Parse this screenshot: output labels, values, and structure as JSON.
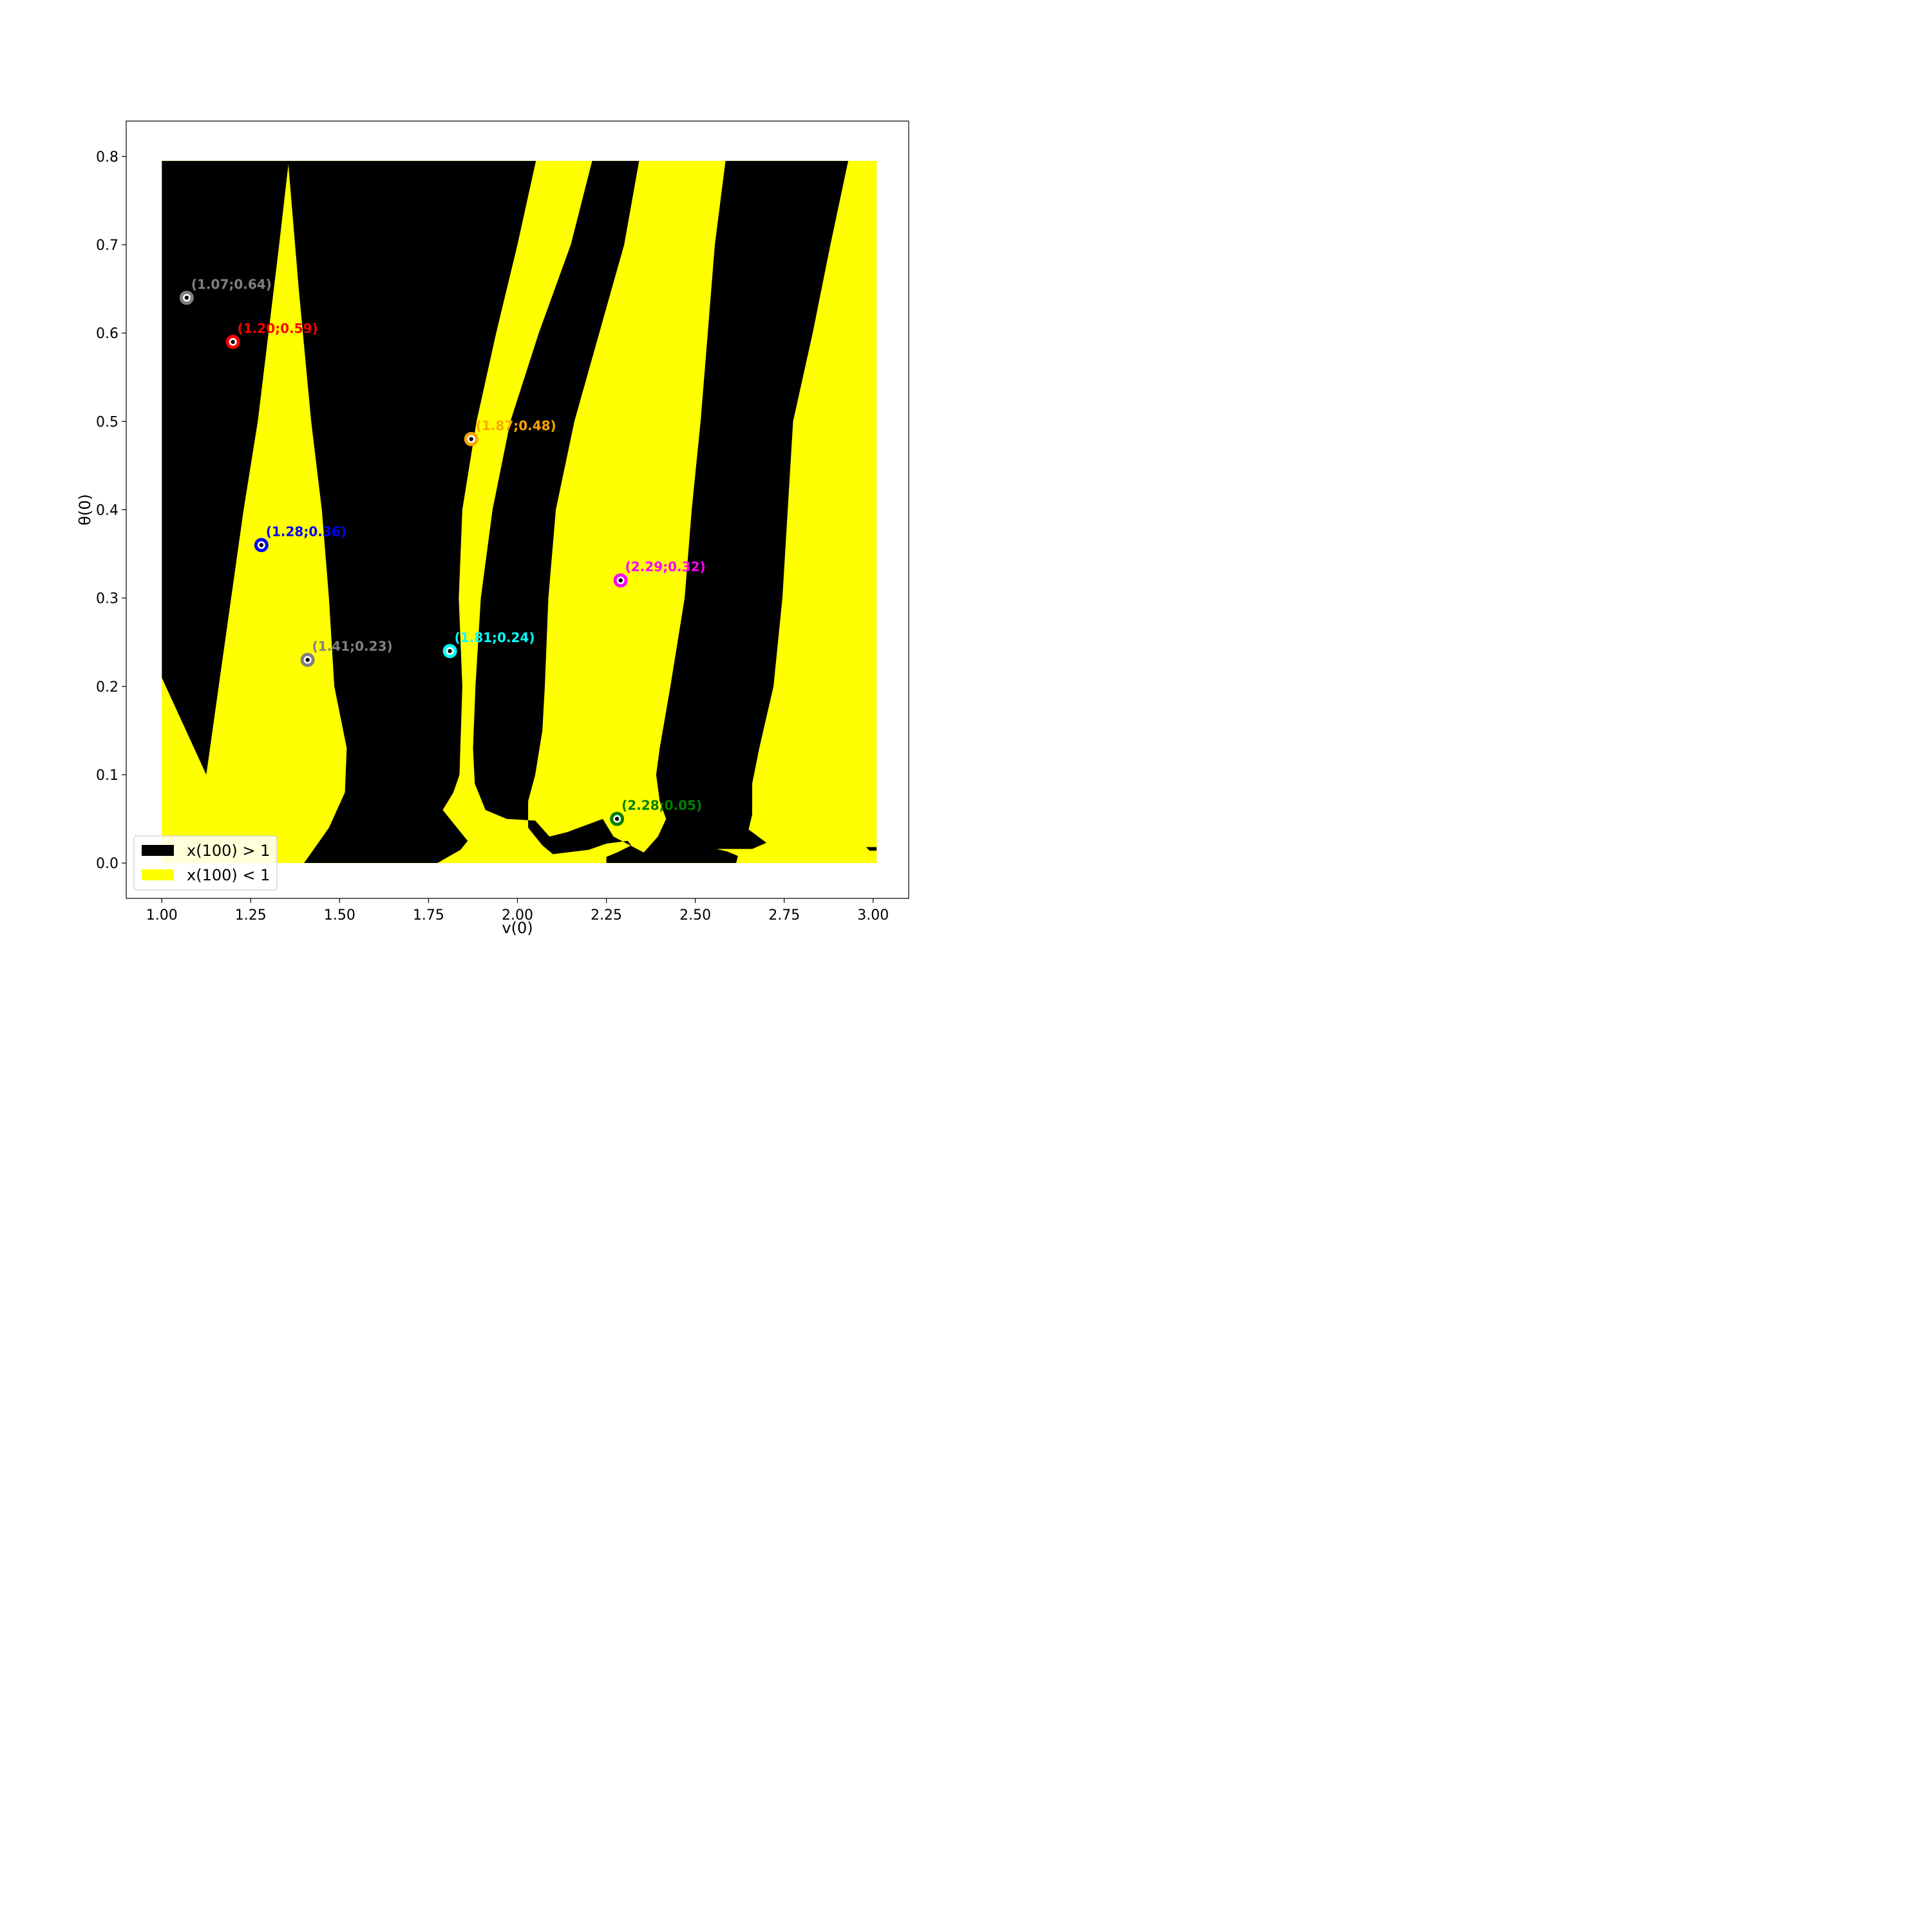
{
  "chart_data": {
    "type": "heatmap",
    "title": "",
    "xlabel": "v(0)",
    "ylabel": "θ(0)",
    "xlim": [
      0.9,
      3.1
    ],
    "ylim": [
      -0.04,
      0.84
    ],
    "xticks": [
      "1.00",
      "1.25",
      "1.50",
      "1.75",
      "2.00",
      "2.25",
      "2.50",
      "2.75",
      "3.00"
    ],
    "yticks": [
      "0.0",
      "0.1",
      "0.2",
      "0.3",
      "0.4",
      "0.5",
      "0.6",
      "0.7",
      "0.8"
    ],
    "grid": false,
    "legend": {
      "placement": "lower-left",
      "entries": [
        {
          "label_main": "x(100) > 1",
          "color": "#000000"
        },
        {
          "label_main": "x(100) < 1",
          "color": "#ffff00"
        }
      ]
    },
    "region_extent": {
      "x": [
        1.0,
        3.01
      ],
      "y": [
        0.0,
        0.795
      ]
    },
    "background_color": "#ffff00",
    "black_regions": [
      {
        "name": "band-1",
        "points": [
          [
            1.0,
            0.795
          ],
          [
            1.357,
            0.795
          ],
          [
            1.33,
            0.7
          ],
          [
            1.3,
            0.6
          ],
          [
            1.27,
            0.5
          ],
          [
            1.23,
            0.4
          ],
          [
            1.195,
            0.3
          ],
          [
            1.16,
            0.2
          ],
          [
            1.125,
            0.1
          ],
          [
            1.0,
            0.21
          ]
        ]
      },
      {
        "name": "band-2",
        "points": [
          [
            1.797,
            0.795
          ],
          [
            2.342,
            0.795
          ],
          [
            2.3,
            0.7
          ],
          [
            2.23,
            0.6
          ],
          [
            2.16,
            0.5
          ],
          [
            2.108,
            0.4
          ],
          [
            2.087,
            0.3
          ],
          [
            2.077,
            0.2
          ],
          [
            2.07,
            0.15
          ],
          [
            2.05,
            0.1
          ],
          [
            2.03,
            0.07
          ],
          [
            2.03,
            0.04
          ],
          [
            2.07,
            0.02
          ],
          [
            2.1,
            0.01
          ],
          [
            2.2,
            0.015
          ],
          [
            2.25,
            0.022
          ],
          [
            2.31,
            0.025
          ],
          [
            2.32,
            0.02
          ],
          [
            2.28,
            0.012
          ],
          [
            2.25,
            0.007
          ],
          [
            2.25,
            0.0
          ],
          [
            2.615,
            0.0
          ],
          [
            2.62,
            0.008
          ],
          [
            2.59,
            0.013
          ],
          [
            2.56,
            0.016
          ],
          [
            2.66,
            0.016
          ],
          [
            2.7,
            0.023
          ],
          [
            2.65,
            0.038
          ],
          [
            2.66,
            0.055
          ],
          [
            2.66,
            0.09
          ],
          [
            2.68,
            0.13
          ],
          [
            2.72,
            0.2
          ],
          [
            2.745,
            0.3
          ],
          [
            2.76,
            0.4
          ],
          [
            2.775,
            0.5
          ],
          [
            2.83,
            0.6
          ],
          [
            2.88,
            0.7
          ],
          [
            2.93,
            0.795
          ],
          [
            2.585,
            0.795
          ],
          [
            2.555,
            0.7
          ],
          [
            2.535,
            0.6
          ],
          [
            2.515,
            0.5
          ],
          [
            2.49,
            0.4
          ],
          [
            2.47,
            0.3
          ],
          [
            2.43,
            0.2
          ],
          [
            2.4,
            0.13
          ],
          [
            2.39,
            0.1
          ],
          [
            2.4,
            0.07
          ],
          [
            2.418,
            0.05
          ],
          [
            2.395,
            0.03
          ],
          [
            2.355,
            0.012
          ],
          [
            2.27,
            0.03
          ],
          [
            2.24,
            0.05
          ],
          [
            2.14,
            0.035
          ],
          [
            2.09,
            0.03
          ],
          [
            2.05,
            0.048
          ],
          [
            1.97,
            0.05
          ],
          [
            1.91,
            0.06
          ],
          [
            1.88,
            0.09
          ],
          [
            1.875,
            0.13
          ],
          [
            1.882,
            0.2
          ],
          [
            1.897,
            0.3
          ],
          [
            1.93,
            0.4
          ],
          [
            1.98,
            0.5
          ],
          [
            2.06,
            0.6
          ],
          [
            2.15,
            0.7
          ],
          [
            2.21,
            0.795
          ]
        ]
      },
      {
        "name": "band-3",
        "points": [
          [
            1.797,
            0.795
          ],
          [
            1.355,
            0.795
          ],
          [
            1.385,
            0.65
          ],
          [
            1.42,
            0.5
          ],
          [
            1.45,
            0.4
          ],
          [
            1.47,
            0.3
          ],
          [
            1.485,
            0.2
          ],
          [
            1.52,
            0.13
          ],
          [
            1.515,
            0.08
          ],
          [
            1.47,
            0.04
          ],
          [
            1.4,
            0.0
          ],
          [
            1.775,
            0.0
          ],
          [
            1.84,
            0.015
          ],
          [
            1.86,
            0.025
          ],
          [
            1.82,
            0.045
          ],
          [
            1.79,
            0.06
          ],
          [
            1.82,
            0.08
          ],
          [
            1.837,
            0.1
          ],
          [
            1.845,
            0.2
          ],
          [
            1.835,
            0.3
          ],
          [
            1.845,
            0.4
          ],
          [
            1.885,
            0.5
          ],
          [
            1.94,
            0.6
          ],
          [
            2.0,
            0.7
          ],
          [
            2.052,
            0.795
          ]
        ]
      },
      {
        "name": "edge-fragment",
        "points": [
          [
            2.98,
            0.018
          ],
          [
            3.01,
            0.018
          ],
          [
            3.01,
            0.014
          ],
          [
            2.99,
            0.014
          ]
        ]
      }
    ],
    "points": [
      {
        "label": "(1.07;0.64)",
        "x": 1.07,
        "y": 0.64,
        "color": "#808080"
      },
      {
        "label": "(1.20;0.59)",
        "x": 1.2,
        "y": 0.59,
        "color": "#ff0000"
      },
      {
        "label": "(1.87;0.48)",
        "x": 1.87,
        "y": 0.48,
        "color": "#ffa500"
      },
      {
        "label": "(1.28;0.36)",
        "x": 1.28,
        "y": 0.36,
        "color": "#0000ff"
      },
      {
        "label": "(2.29;0.32)",
        "x": 2.29,
        "y": 0.32,
        "color": "#ff00ff"
      },
      {
        "label": "(1.41;0.23)",
        "x": 1.41,
        "y": 0.23,
        "color": "#808080"
      },
      {
        "label": "(1.81;0.24)",
        "x": 1.81,
        "y": 0.24,
        "color": "#00ffff"
      },
      {
        "label": "(2.28;0.05)",
        "x": 2.28,
        "y": 0.05,
        "color": "#008000"
      }
    ]
  }
}
